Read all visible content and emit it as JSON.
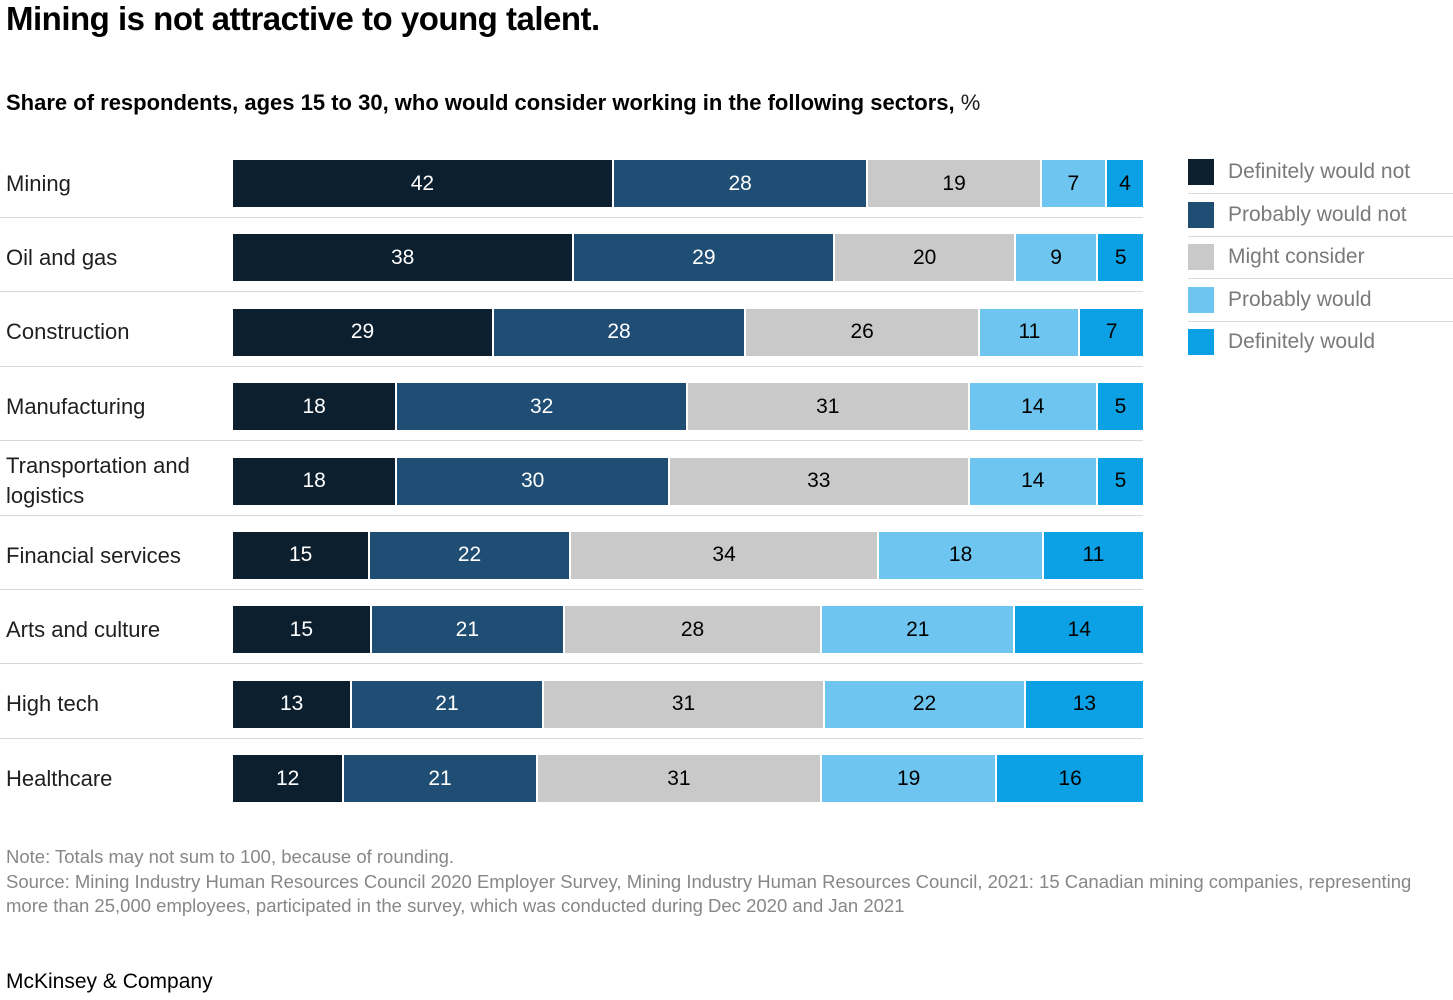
{
  "title": "Mining is not attractive to young talent.",
  "subtitle": "Share of respondents, ages 15 to 30, who would consider working in the following sectors,",
  "subtitle_unit": "%",
  "colors": {
    "definitely_would_not": "#0c1f2e",
    "probably_would_not": "#1f4d74",
    "might_consider": "#c9c9c9",
    "probably_would": "#6ec6f0",
    "definitely_would": "#0ba1e4",
    "divider": "#d9d9d9",
    "legend_text": "#7a7a7a",
    "footnote_text": "#878787"
  },
  "legend": [
    {
      "label": "Definitely would not",
      "color": "#0c1f2e"
    },
    {
      "label": "Probably would not",
      "color": "#1f4d74"
    },
    {
      "label": "Might consider",
      "color": "#c9c9c9"
    },
    {
      "label": "Probably would",
      "color": "#6ec6f0"
    },
    {
      "label": "Definitely would",
      "color": "#0ba1e4"
    }
  ],
  "chart_data": {
    "type": "bar",
    "orientation": "horizontal",
    "stacked": true,
    "unit": "%",
    "xlim": [
      0,
      100
    ],
    "grid": false,
    "legend_position": "top-right",
    "categories": [
      "Mining",
      "Oil and gas",
      "Construction",
      "Manufacturing",
      "Transportation and logistics",
      "Financial services",
      "Arts and culture",
      "High tech",
      "Healthcare"
    ],
    "series": [
      {
        "name": "Definitely would not",
        "color": "#0c1f2e",
        "text_color": "#ffffff",
        "values": [
          42,
          38,
          29,
          18,
          18,
          15,
          15,
          13,
          12
        ]
      },
      {
        "name": "Probably would not",
        "color": "#1f4d74",
        "text_color": "#ffffff",
        "values": [
          28,
          29,
          28,
          32,
          30,
          22,
          21,
          21,
          21
        ]
      },
      {
        "name": "Might consider",
        "color": "#c9c9c9",
        "text_color": "#000000",
        "values": [
          19,
          20,
          26,
          31,
          33,
          34,
          28,
          31,
          31
        ]
      },
      {
        "name": "Probably would",
        "color": "#6ec6f0",
        "text_color": "#000000",
        "values": [
          7,
          9,
          11,
          14,
          14,
          18,
          21,
          22,
          19
        ]
      },
      {
        "name": "Definitely would",
        "color": "#0ba1e4",
        "text_color": "#000000",
        "values": [
          4,
          5,
          7,
          5,
          5,
          11,
          14,
          13,
          16
        ]
      }
    ],
    "title": "Mining is not attractive to young talent.",
    "subtitle": "Share of respondents, ages 15 to 30, who would consider working in the following sectors, %"
  },
  "note": "Note: Totals may not sum to 100, because of rounding.",
  "source": "Source: Mining Industry Human Resources Council 2020 Employer Survey, Mining Industry Human Resources Council, 2021: 15 Canadian mining companies, representing more than 25,000 employees, participated in the survey, which was conducted during Dec 2020 and Jan 2021",
  "brand": "McKinsey & Company"
}
